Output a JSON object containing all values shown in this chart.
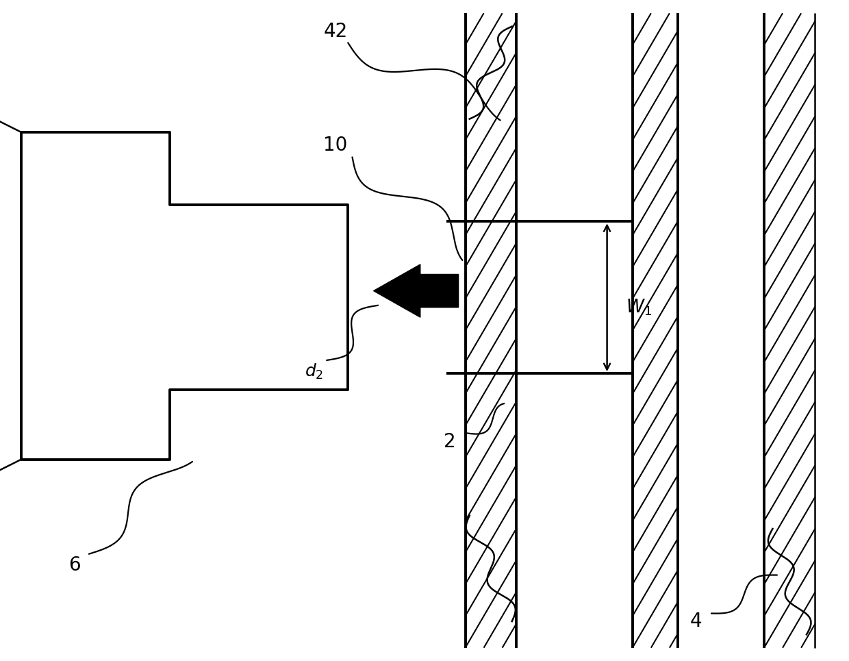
{
  "bg_color": "#ffffff",
  "line_color": "#000000",
  "fig_width": 12.4,
  "fig_height": 9.65,
  "dpi": 100
}
